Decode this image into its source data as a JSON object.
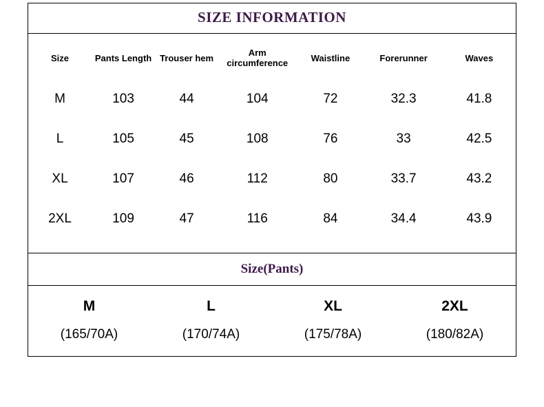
{
  "title": "SIZE INFORMATION",
  "main_table": {
    "columns": [
      "Size",
      "Pants Length",
      "Trouser hem",
      "Arm circumference",
      "Waistline",
      "Forerunner",
      "Waves"
    ],
    "rows": [
      [
        "M",
        "103",
        "44",
        "104",
        "72",
        "32.3",
        "41.8"
      ],
      [
        "L",
        "105",
        "45",
        "108",
        "76",
        "33",
        "42.5"
      ],
      [
        "XL",
        "107",
        "46",
        "112",
        "80",
        "33.7",
        "43.2"
      ],
      [
        "2XL",
        "109",
        "47",
        "116",
        "84",
        "34.4",
        "43.9"
      ]
    ],
    "header_fontsize": 13,
    "cell_fontsize": 19,
    "border_color": "#000000"
  },
  "subtitle": "Size(Pants)",
  "pants_table": {
    "headers": [
      "M",
      "L",
      "XL",
      "2XL"
    ],
    "values": [
      "(165/70A)",
      "(170/74A)",
      "(175/78A)",
      "(180/82A)"
    ],
    "header_fontsize": 21,
    "cell_fontsize": 19
  },
  "colors": {
    "title_color": "#3d1a4a",
    "text_color": "#000000",
    "background": "#ffffff",
    "border": "#000000"
  }
}
